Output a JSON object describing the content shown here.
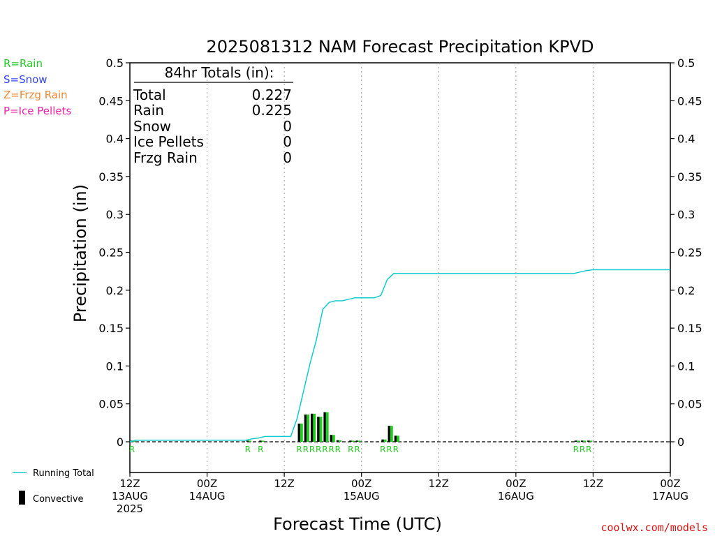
{
  "title": "2025081312 NAM Forecast Precipitation KPVD",
  "credit": "coolwx.com/models",
  "type_legend": [
    {
      "text": "R=Rain",
      "color": "#22cc22"
    },
    {
      "text": "S=Snow",
      "color": "#3344ee"
    },
    {
      "text": "Z=Frzg Rain",
      "color": "#ee8833"
    },
    {
      "text": "P=Ice Pellets",
      "color": "#ee22aa"
    }
  ],
  "totals": {
    "heading": "84hr Totals (in):",
    "rows": [
      {
        "label": "Total",
        "value": "0.227"
      },
      {
        "label": "Rain",
        "value": "0.225"
      },
      {
        "label": "Snow",
        "value": "0"
      },
      {
        "label": "Ice Pellets",
        "value": "0"
      },
      {
        "label": "Frzg Rain",
        "value": "0"
      }
    ]
  },
  "bottom_legend": {
    "running_total": "Running Total",
    "convective": "Convective"
  },
  "chart_data": {
    "type": "bar",
    "title": "2025081312 NAM Forecast Precipitation KPVD",
    "xlabel": "Forecast Time (UTC)",
    "ylabel": "Precipitation (in)",
    "ylim": [
      0,
      0.5
    ],
    "xlim_hours": [
      0,
      84
    ],
    "y_ticks": [
      "0.5",
      "0.45",
      "0.4",
      "0.35",
      "0.3",
      "0.25",
      "0.2",
      "0.15",
      "0.1",
      "0.05",
      "0"
    ],
    "x_ticks": [
      {
        "hour": 0,
        "lines": [
          "12Z",
          "13AUG",
          "2025"
        ]
      },
      {
        "hour": 12,
        "lines": [
          "00Z",
          "14AUG"
        ]
      },
      {
        "hour": 24,
        "lines": [
          "12Z"
        ]
      },
      {
        "hour": 36,
        "lines": [
          "00Z",
          "15AUG"
        ]
      },
      {
        "hour": 48,
        "lines": [
          "12Z"
        ]
      },
      {
        "hour": 60,
        "lines": [
          "00Z",
          "16AUG"
        ]
      },
      {
        "hour": 72,
        "lines": [
          "12Z"
        ]
      },
      {
        "hour": 84,
        "lines": [
          "00Z",
          "17AUG"
        ]
      }
    ],
    "grid": "vertical dotted",
    "series": [
      {
        "name": "Running Total",
        "kind": "line",
        "color": "#11cccc",
        "points": [
          [
            0,
            0
          ],
          [
            1,
            0.002
          ],
          [
            6,
            0.002
          ],
          [
            12,
            0.002
          ],
          [
            18,
            0.002
          ],
          [
            19,
            0.004
          ],
          [
            20,
            0.005
          ],
          [
            21,
            0.007
          ],
          [
            22,
            0.007
          ],
          [
            23,
            0.007
          ],
          [
            24,
            0.007
          ],
          [
            25,
            0.007
          ],
          [
            26,
            0.031
          ],
          [
            27,
            0.067
          ],
          [
            28,
            0.103
          ],
          [
            29,
            0.135
          ],
          [
            30,
            0.175
          ],
          [
            31,
            0.184
          ],
          [
            32,
            0.186
          ],
          [
            33,
            0.186
          ],
          [
            34,
            0.188
          ],
          [
            35,
            0.19
          ],
          [
            36,
            0.19
          ],
          [
            37,
            0.19
          ],
          [
            38,
            0.19
          ],
          [
            39,
            0.193
          ],
          [
            40,
            0.214
          ],
          [
            41,
            0.222
          ],
          [
            42,
            0.222
          ],
          [
            48,
            0.222
          ],
          [
            60,
            0.222
          ],
          [
            68,
            0.222
          ],
          [
            69,
            0.222
          ],
          [
            70,
            0.224
          ],
          [
            71,
            0.226
          ],
          [
            72,
            0.227
          ],
          [
            84,
            0.227
          ]
        ]
      },
      {
        "name": "Precipitation",
        "kind": "bar",
        "color": "#22cc22",
        "convective_color": "#000000",
        "bars": [
          {
            "hour": 0,
            "value": 0.0015,
            "type": "R"
          },
          {
            "hour": 18,
            "value": 0.0015,
            "type": "R"
          },
          {
            "hour": 20,
            "value": 0.0015,
            "type": "R"
          },
          {
            "hour": 26,
            "value": 0.024,
            "type": "R"
          },
          {
            "hour": 27,
            "value": 0.036,
            "type": "R"
          },
          {
            "hour": 28,
            "value": 0.037,
            "type": "R"
          },
          {
            "hour": 29,
            "value": 0.033,
            "type": "R"
          },
          {
            "hour": 30,
            "value": 0.039,
            "type": "R"
          },
          {
            "hour": 31,
            "value": 0.009,
            "type": "R"
          },
          {
            "hour": 32,
            "value": 0.002,
            "type": "R"
          },
          {
            "hour": 34,
            "value": 0.0015,
            "type": "R"
          },
          {
            "hour": 35,
            "value": 0.0015,
            "type": "R"
          },
          {
            "hour": 39,
            "value": 0.003,
            "type": "R"
          },
          {
            "hour": 40,
            "value": 0.021,
            "type": "R"
          },
          {
            "hour": 41,
            "value": 0.008,
            "type": "R"
          },
          {
            "hour": 69,
            "value": 0.0015,
            "type": "R"
          },
          {
            "hour": 70,
            "value": 0.0015,
            "type": "R"
          },
          {
            "hour": 71,
            "value": 0.0015,
            "type": "R"
          }
        ]
      }
    ]
  }
}
